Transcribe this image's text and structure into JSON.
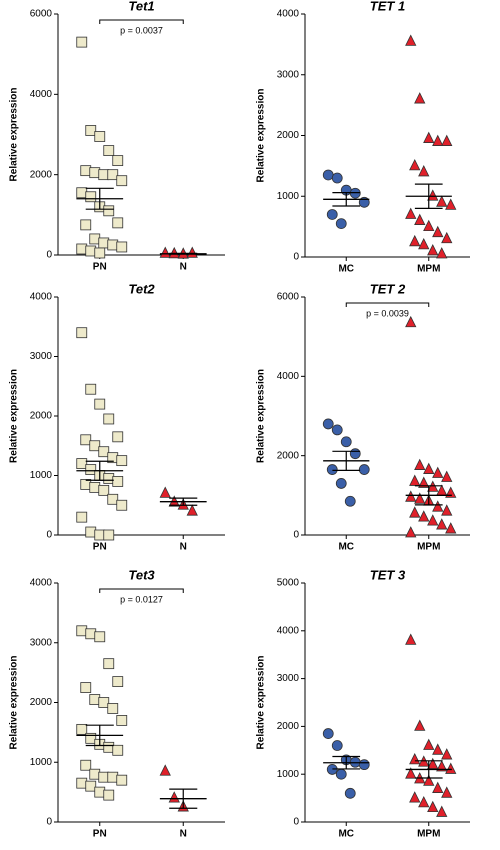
{
  "chart_data": [
    {
      "type": "strip",
      "title": "Tet1",
      "y_label": "Relative expression",
      "ylim": [
        0,
        6000
      ],
      "yticks": [
        0,
        2000,
        4000,
        6000
      ],
      "annotation": "p = 0.0037",
      "series": [
        {
          "name": "PN",
          "color": "#eeeacb",
          "marker": "square",
          "values": [
            5300,
            3100,
            2950,
            2600,
            2350,
            2100,
            2050,
            2000,
            2000,
            1850,
            1550,
            1450,
            1200,
            1100,
            800,
            750,
            400,
            300,
            250,
            200,
            150,
            100,
            50
          ],
          "mean": 1400,
          "sem": 260
        },
        {
          "name": "N",
          "color": "#e0202a",
          "marker": "triangle",
          "values": [
            40,
            30,
            20,
            40
          ],
          "mean": 30,
          "sem": 10
        }
      ]
    },
    {
      "type": "strip",
      "title": "TET 1",
      "y_label": "Relative expression",
      "ylim": [
        0,
        4000
      ],
      "yticks": [
        0,
        1000,
        2000,
        3000,
        4000
      ],
      "series": [
        {
          "name": "MC",
          "color": "#3a5fa8",
          "marker": "circle",
          "values": [
            1350,
            1300,
            1100,
            1050,
            900,
            700,
            550
          ],
          "mean": 950,
          "sem": 110
        },
        {
          "name": "MPM",
          "color": "#e0202a",
          "marker": "triangle",
          "values": [
            3550,
            2600,
            1950,
            1900,
            1900,
            1500,
            1400,
            1000,
            900,
            850,
            700,
            600,
            500,
            400,
            300,
            250,
            200,
            100,
            50
          ],
          "mean": 1000,
          "sem": 200
        }
      ]
    },
    {
      "type": "strip",
      "title": "Tet2",
      "y_label": "Relative expression",
      "ylim": [
        0,
        4000
      ],
      "yticks": [
        0,
        1000,
        2000,
        3000,
        4000
      ],
      "series": [
        {
          "name": "PN",
          "color": "#eeeacb",
          "marker": "square",
          "values": [
            3400,
            2450,
            2200,
            1950,
            1650,
            1600,
            1500,
            1400,
            1300,
            1250,
            1200,
            1100,
            1000,
            950,
            900,
            850,
            800,
            750,
            600,
            500,
            300,
            50,
            0,
            0
          ],
          "mean": 1080,
          "sem": 160
        },
        {
          "name": "N",
          "color": "#e0202a",
          "marker": "triangle",
          "values": [
            700,
            550,
            500,
            400
          ],
          "mean": 560,
          "sem": 60
        }
      ]
    },
    {
      "type": "strip",
      "title": "TET 2",
      "y_label": "Relative expression",
      "ylim": [
        0,
        6000
      ],
      "yticks": [
        0,
        2000,
        4000,
        6000
      ],
      "annotation": "p = 0.0039",
      "series": [
        {
          "name": "MC",
          "color": "#3a5fa8",
          "marker": "circle",
          "values": [
            2800,
            2650,
            2350,
            2050,
            1650,
            1650,
            1300,
            850
          ],
          "mean": 1870,
          "sem": 240
        },
        {
          "name": "MPM",
          "color": "#e0202a",
          "marker": "triangle",
          "values": [
            5350,
            1750,
            1650,
            1550,
            1450,
            1350,
            1300,
            1200,
            1100,
            1050,
            950,
            900,
            850,
            700,
            600,
            550,
            450,
            350,
            250,
            150,
            50
          ],
          "mean": 1000,
          "sem": 240
        }
      ]
    },
    {
      "type": "strip",
      "title": "Tet3",
      "y_label": "Relative expression",
      "ylim": [
        0,
        4000
      ],
      "yticks": [
        0,
        1000,
        2000,
        3000,
        4000
      ],
      "annotation": "p = 0.0127",
      "series": [
        {
          "name": "PN",
          "color": "#eeeacb",
          "marker": "square",
          "values": [
            3200,
            3150,
            3100,
            2650,
            2350,
            2250,
            2050,
            2000,
            1900,
            1700,
            1550,
            1400,
            1300,
            1250,
            1200,
            950,
            800,
            750,
            750,
            700,
            650,
            600,
            500,
            450
          ],
          "mean": 1450,
          "sem": 170
        },
        {
          "name": "N",
          "color": "#e0202a",
          "marker": "triangle",
          "values": [
            850,
            400,
            250
          ],
          "mean": 390,
          "sem": 160
        }
      ]
    },
    {
      "type": "strip",
      "title": "TET 3",
      "y_label": "Relative expression",
      "ylim": [
        0,
        5000
      ],
      "yticks": [
        0,
        1000,
        2000,
        3000,
        4000,
        5000
      ],
      "series": [
        {
          "name": "MC",
          "color": "#3a5fa8",
          "marker": "circle",
          "values": [
            1850,
            1600,
            1300,
            1250,
            1200,
            1100,
            1000,
            600
          ],
          "mean": 1240,
          "sem": 130
        },
        {
          "name": "MPM",
          "color": "#e0202a",
          "marker": "triangle",
          "values": [
            3800,
            2000,
            1600,
            1500,
            1400,
            1300,
            1250,
            1200,
            1150,
            1100,
            1000,
            900,
            850,
            700,
            600,
            500,
            400,
            300,
            200
          ],
          "mean": 1100,
          "sem": 180
        }
      ]
    }
  ]
}
